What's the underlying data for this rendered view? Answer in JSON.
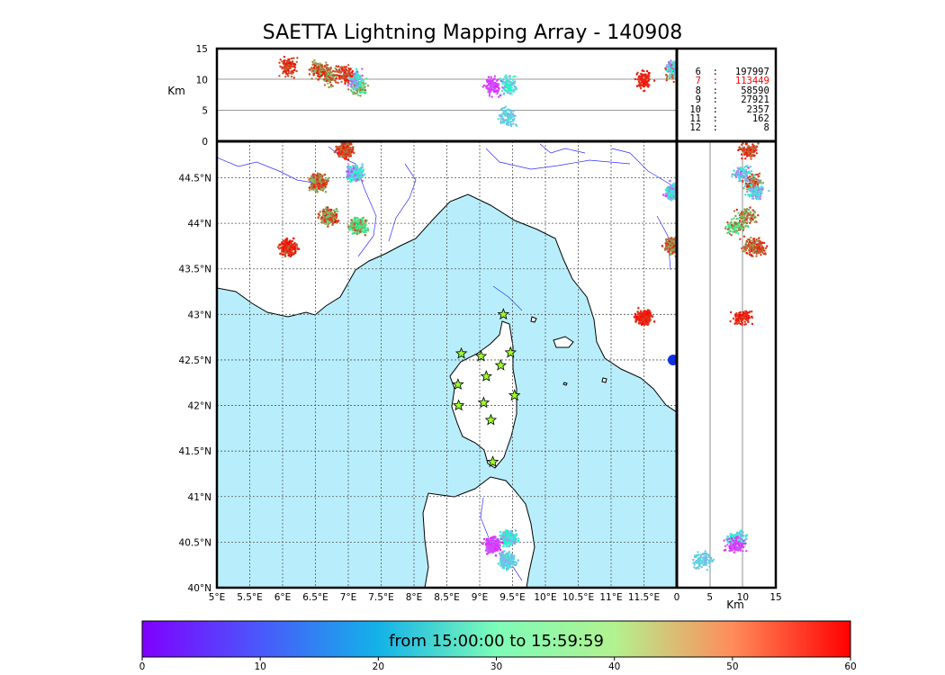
{
  "title": "SAETTA Lightning Mapping Array - 140908",
  "time_range_label": "from 15:00:00 to 15:59:59",
  "altitude_axis_label": "Km",
  "side_axis_label": "Km",
  "altitude_ticks": [
    "0",
    "5",
    "10",
    "15"
  ],
  "side_ticks": [
    "0",
    "5",
    "10",
    "15"
  ],
  "lon_ticks": [
    "5°E",
    "5.5°E",
    "6°E",
    "6.5°E",
    "7°E",
    "7.5°E",
    "8°E",
    "8.5°E",
    "9°E",
    "9.5°E",
    "10°E",
    "10.5°E",
    "11°E",
    "11.5°E"
  ],
  "lat_ticks": [
    "40°N",
    "40.5°N",
    "41°N",
    "41.5°N",
    "42°N",
    "42.5°N",
    "43°N",
    "43.5°N",
    "44°N",
    "44.5°N"
  ],
  "colorbar_ticks": [
    "0",
    "10",
    "20",
    "30",
    "40",
    "50",
    "60"
  ],
  "station_counts": [
    {
      "stations": "6",
      "count": "197997",
      "color": "#000000"
    },
    {
      "stations": "7",
      "count": "113449",
      "color": "#ff0000"
    },
    {
      "stations": "8",
      "count": "58590",
      "color": "#000000"
    },
    {
      "stations": "9",
      "count": "27921",
      "color": "#000000"
    },
    {
      "stations": "10",
      "count": "2357",
      "color": "#000000"
    },
    {
      "stations": "11",
      "count": "162",
      "color": "#000000"
    },
    {
      "stations": "12",
      "count": "8",
      "color": "#000000"
    }
  ],
  "colors": {
    "sea": "#b8eefc",
    "land": "#ffffff",
    "rivers": "#3030ff",
    "stations": "#9cff2a"
  },
  "chart_data": {
    "type": "scatter",
    "map_extent": {
      "lon": [
        5,
        12
      ],
      "lat": [
        40,
        44.9
      ]
    },
    "altitude_range_km": [
      0,
      15
    ],
    "colorbar_range_minutes": [
      0,
      60
    ],
    "colormap": "rainbow",
    "station_locations": [
      {
        "lon": 9.36,
        "lat": 43.0
      },
      {
        "lon": 8.72,
        "lat": 42.57
      },
      {
        "lon": 9.02,
        "lat": 42.54
      },
      {
        "lon": 9.47,
        "lat": 42.58
      },
      {
        "lon": 9.32,
        "lat": 42.44
      },
      {
        "lon": 9.1,
        "lat": 42.32
      },
      {
        "lon": 8.67,
        "lat": 42.23
      },
      {
        "lon": 8.68,
        "lat": 42.0
      },
      {
        "lon": 9.06,
        "lat": 42.03
      },
      {
        "lon": 9.53,
        "lat": 42.11
      },
      {
        "lon": 9.17,
        "lat": 41.84
      },
      {
        "lon": 9.2,
        "lat": 41.38
      }
    ],
    "source_clusters": [
      {
        "lon": 6.7,
        "lat": 44.08,
        "alt": 10.5,
        "t": [
          40,
          60
        ]
      },
      {
        "lon": 7.15,
        "lat": 43.97,
        "alt": 9.0,
        "t": [
          32,
          55
        ]
      },
      {
        "lon": 6.55,
        "lat": 44.45,
        "alt": 11.5,
        "t": [
          42,
          60
        ]
      },
      {
        "lon": 6.1,
        "lat": 43.73,
        "alt": 12.0,
        "t": [
          52,
          60
        ]
      },
      {
        "lon": 7.1,
        "lat": 44.55,
        "alt": 10.0,
        "t": [
          5,
          30
        ]
      },
      {
        "lon": 6.95,
        "lat": 44.8,
        "alt": 11.0,
        "t": [
          50,
          60
        ]
      },
      {
        "lon": 11.5,
        "lat": 42.97,
        "alt": 10.0,
        "t": [
          55,
          60
        ]
      },
      {
        "lon": 9.45,
        "lat": 40.55,
        "alt": 9.0,
        "t": [
          12,
          32
        ]
      },
      {
        "lon": 9.2,
        "lat": 40.46,
        "alt": 9.0,
        "t": [
          2,
          8
        ]
      },
      {
        "lon": 9.42,
        "lat": 40.3,
        "alt": 4.0,
        "t": [
          14,
          22
        ]
      },
      {
        "lon": 11.95,
        "lat": 43.75,
        "alt": 11.5,
        "t": [
          44,
          60
        ]
      },
      {
        "lon": 11.95,
        "lat": 44.35,
        "alt": 12.0,
        "t": [
          5,
          30
        ]
      }
    ]
  }
}
